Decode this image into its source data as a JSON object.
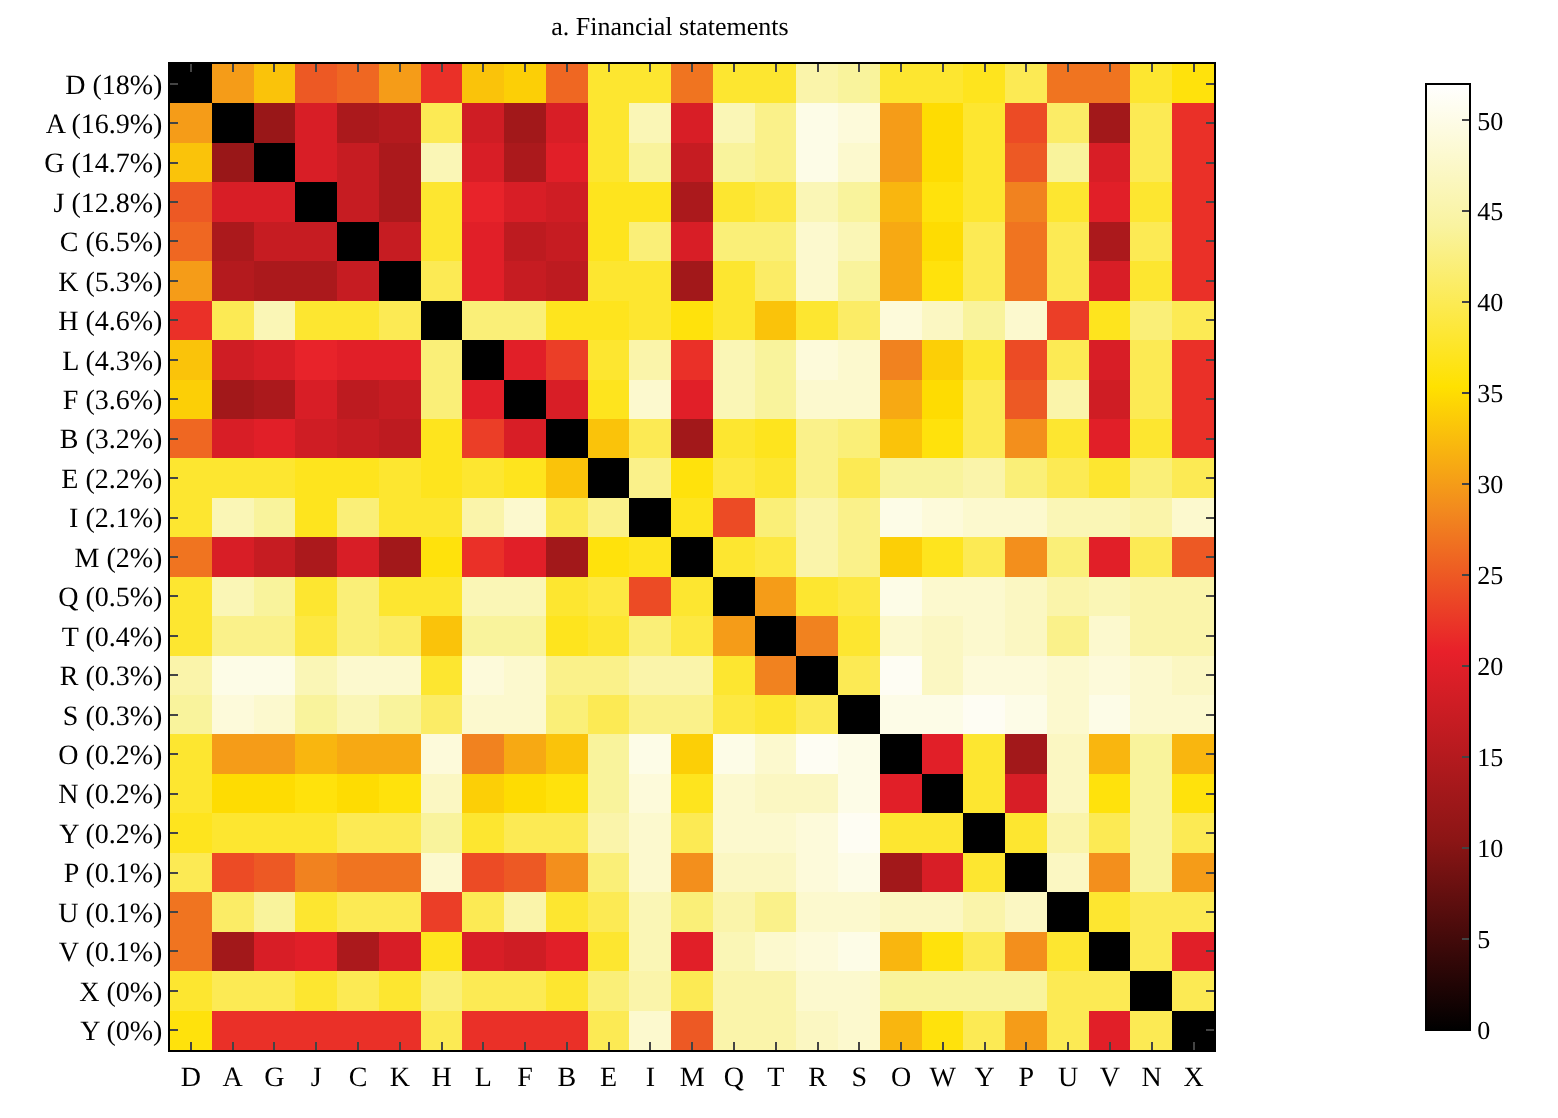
{
  "chart_data": {
    "type": "heatmap",
    "title": "a. Financial statements",
    "categories": [
      "D",
      "A",
      "G",
      "J",
      "C",
      "K",
      "H",
      "L",
      "F",
      "B",
      "E",
      "I",
      "M",
      "Q",
      "T",
      "R",
      "S",
      "O",
      "W",
      "Y",
      "P",
      "U",
      "V",
      "N",
      "X"
    ],
    "y_categories": [
      "D (18%)",
      "A (16.9%)",
      "G (14.7%)",
      "J (12.8%)",
      "C (6.5%)",
      "K (5.3%)",
      "H (4.6%)",
      "L (4.3%)",
      "F (3.6%)",
      "B (3.2%)",
      "E (2.2%)",
      "I (2.1%)",
      "M (2%)",
      "Q (0.5%)",
      "T (0.4%)",
      "R (0.3%)",
      "S (0.3%)",
      "O (0.2%)",
      "N (0.2%)",
      "Y (0.2%)",
      "P (0.1%)",
      "U (0.1%)",
      "V (0.1%)",
      "X (0%)",
      "Y (0%)"
    ],
    "cells": [
      [
        0,
        30,
        33,
        25,
        26,
        30,
        22,
        33,
        34,
        26,
        38,
        38,
        27,
        38,
        38,
        45,
        44,
        38,
        38,
        37,
        40,
        27,
        27,
        38,
        36
      ],
      [
        30,
        0,
        12,
        19,
        14,
        15,
        40,
        18,
        13,
        19,
        38,
        46,
        19,
        46,
        43,
        50,
        49,
        30,
        35,
        38,
        24,
        41,
        13,
        40,
        22
      ],
      [
        33,
        12,
        0,
        19,
        17,
        14,
        46,
        19,
        14,
        20,
        38,
        44,
        17,
        44,
        43,
        50,
        48,
        30,
        35,
        38,
        25,
        44,
        19,
        40,
        22
      ],
      [
        25,
        19,
        19,
        0,
        17,
        14,
        38,
        21,
        19,
        18,
        37,
        37,
        14,
        38,
        39,
        46,
        44,
        32,
        36,
        38,
        28,
        38,
        20,
        38,
        22
      ],
      [
        26,
        14,
        17,
        17,
        0,
        17,
        38,
        20,
        16,
        17,
        37,
        42,
        19,
        42,
        42,
        48,
        46,
        31,
        35,
        40,
        27,
        40,
        14,
        40,
        22
      ],
      [
        30,
        15,
        14,
        14,
        17,
        0,
        40,
        20,
        17,
        16,
        38,
        38,
        13,
        38,
        41,
        48,
        44,
        31,
        36,
        40,
        27,
        40,
        19,
        38,
        22
      ],
      [
        22,
        40,
        46,
        38,
        38,
        40,
        0,
        42,
        42,
        37,
        37,
        38,
        36,
        38,
        33,
        38,
        41,
        49,
        47,
        44,
        48,
        23,
        37,
        42,
        40
      ],
      [
        33,
        18,
        19,
        21,
        20,
        20,
        42,
        0,
        20,
        23,
        38,
        45,
        22,
        46,
        44,
        49,
        48,
        28,
        34,
        38,
        24,
        40,
        19,
        40,
        22
      ],
      [
        34,
        13,
        14,
        19,
        16,
        17,
        42,
        20,
        0,
        19,
        37,
        48,
        20,
        46,
        44,
        48,
        48,
        31,
        35,
        40,
        25,
        45,
        18,
        40,
        22
      ],
      [
        26,
        19,
        20,
        18,
        17,
        16,
        37,
        23,
        19,
        0,
        33,
        40,
        13,
        38,
        37,
        43,
        42,
        33,
        36,
        40,
        29,
        38,
        20,
        38,
        22
      ],
      [
        38,
        38,
        38,
        37,
        37,
        38,
        37,
        38,
        37,
        33,
        0,
        43,
        36,
        39,
        38,
        43,
        40,
        44,
        44,
        45,
        42,
        40,
        38,
        42,
        40
      ],
      [
        38,
        46,
        44,
        37,
        42,
        38,
        38,
        45,
        48,
        40,
        43,
        0,
        37,
        24,
        42,
        45,
        43,
        50,
        49,
        48,
        48,
        46,
        46,
        45,
        48
      ],
      [
        27,
        19,
        17,
        14,
        19,
        13,
        36,
        22,
        20,
        13,
        36,
        37,
        0,
        38,
        39,
        45,
        43,
        34,
        37,
        40,
        29,
        42,
        20,
        40,
        25
      ],
      [
        38,
        46,
        44,
        38,
        42,
        38,
        38,
        46,
        46,
        38,
        39,
        24,
        38,
        0,
        30,
        38,
        39,
        50,
        48,
        48,
        47,
        45,
        46,
        45,
        45
      ],
      [
        38,
        43,
        43,
        39,
        42,
        41,
        33,
        44,
        44,
        37,
        38,
        42,
        39,
        30,
        0,
        28,
        38,
        48,
        47,
        48,
        47,
        43,
        48,
        45,
        45
      ],
      [
        45,
        50,
        50,
        46,
        48,
        48,
        38,
        49,
        48,
        43,
        43,
        45,
        45,
        38,
        28,
        0,
        40,
        51,
        47,
        49,
        49,
        48,
        49,
        48,
        47
      ],
      [
        44,
        49,
        48,
        44,
        46,
        44,
        41,
        48,
        48,
        42,
        40,
        43,
        43,
        39,
        38,
        40,
        0,
        50,
        50,
        51,
        50,
        48,
        50,
        48,
        48
      ],
      [
        38,
        30,
        30,
        32,
        31,
        31,
        49,
        28,
        31,
        33,
        44,
        50,
        34,
        50,
        48,
        51,
        50,
        0,
        20,
        38,
        13,
        47,
        32,
        44,
        32
      ],
      [
        38,
        35,
        35,
        36,
        35,
        36,
        47,
        34,
        35,
        36,
        44,
        49,
        37,
        48,
        47,
        47,
        50,
        20,
        0,
        38,
        19,
        47,
        36,
        44,
        36
      ],
      [
        37,
        38,
        38,
        38,
        40,
        40,
        44,
        38,
        40,
        40,
        45,
        48,
        40,
        48,
        48,
        49,
        51,
        38,
        38,
        0,
        38,
        45,
        40,
        44,
        40
      ],
      [
        40,
        24,
        25,
        28,
        27,
        27,
        48,
        24,
        25,
        29,
        42,
        48,
        29,
        47,
        47,
        49,
        50,
        13,
        19,
        38,
        0,
        47,
        29,
        44,
        30
      ],
      [
        27,
        41,
        44,
        38,
        40,
        40,
        23,
        40,
        45,
        38,
        40,
        46,
        42,
        45,
        43,
        48,
        48,
        47,
        47,
        45,
        47,
        0,
        38,
        40,
        40
      ],
      [
        27,
        13,
        19,
        20,
        14,
        19,
        37,
        19,
        18,
        20,
        38,
        46,
        20,
        46,
        48,
        49,
        50,
        32,
        36,
        40,
        29,
        38,
        0,
        40,
        20
      ],
      [
        38,
        40,
        40,
        38,
        40,
        38,
        42,
        40,
        40,
        38,
        42,
        45,
        40,
        45,
        45,
        48,
        48,
        44,
        44,
        44,
        44,
        40,
        40,
        0,
        40
      ],
      [
        36,
        22,
        22,
        22,
        22,
        22,
        40,
        22,
        22,
        22,
        40,
        48,
        25,
        45,
        45,
        47,
        48,
        32,
        36,
        40,
        30,
        40,
        20,
        40,
        0
      ]
    ],
    "clim": [
      0,
      52
    ],
    "cticks": [
      0,
      5,
      10,
      15,
      20,
      25,
      30,
      35,
      40,
      45,
      50
    ]
  }
}
